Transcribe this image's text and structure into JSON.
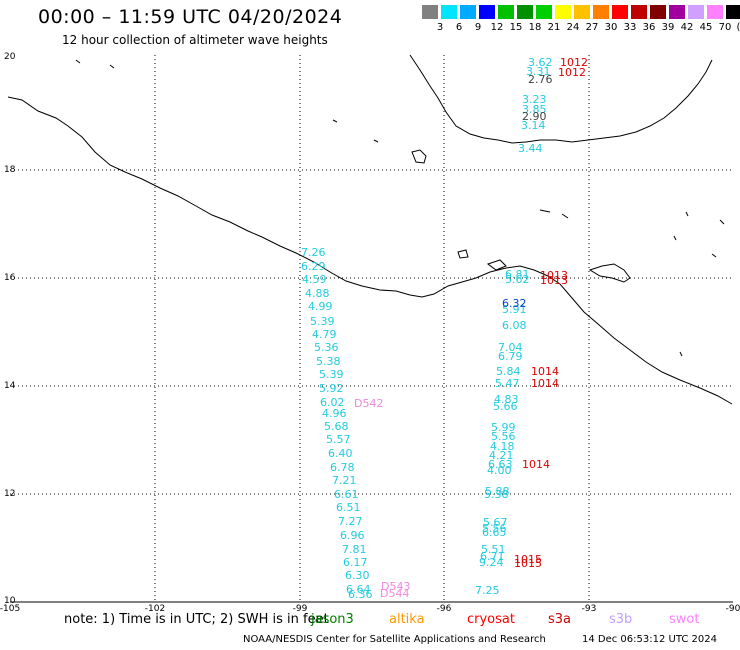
{
  "header": {
    "title": "00:00 – 11:59 UTC 04/20/2024",
    "subtitle": "12 hour collection of altimeter wave heights"
  },
  "scale": {
    "labels": [
      "3",
      "6",
      "9",
      "12",
      "15",
      "18",
      "21",
      "24",
      "27",
      "30",
      "33",
      "36",
      "39",
      "42",
      "45",
      "70",
      "(ft)"
    ],
    "colors": [
      "#808080",
      "#00e5ff",
      "#00aaff",
      "#0000ff",
      "#00c000",
      "#009000",
      "#00d000",
      "#ffff00",
      "#ffc000",
      "#ff8000",
      "#ff0000",
      "#c00000",
      "#800000",
      "#a000a0",
      "#d0a0ff",
      "#ff80ff",
      "#000000"
    ]
  },
  "axes": {
    "lon_labels": [
      "-105",
      "-102",
      "-99",
      "-96",
      "-93",
      "-90"
    ],
    "lat_labels": [
      "20",
      "18",
      "16",
      "14",
      "12",
      "10"
    ]
  },
  "tracks": {
    "jason_west_cyan": [
      "7.26",
      "6.29",
      "4.59",
      "4.88",
      "4.99",
      "5.39",
      "4.79",
      "5.36",
      "5.38",
      "5.39",
      "5.92",
      "6.02",
      "4.96",
      "5.68",
      "5.57",
      "6.40",
      "6.78",
      "7.21",
      "6.61",
      "6.51",
      "7.27",
      "6.96",
      "7.81",
      "6.17",
      "6.30",
      "6.64",
      "6.36"
    ],
    "east_cyan_north": [
      "3.62",
      "3.31",
      "3.23",
      "3.85",
      "3.14",
      "3.44"
    ],
    "east_gray_north": [
      "2.76",
      "2.90"
    ],
    "east_cyan_south": [
      "6.81",
      "5.62",
      "5.91",
      "6.08",
      "7.04",
      "6.79",
      "5.84",
      "5.47",
      "4.83",
      "5.66",
      "5.99",
      "5.56",
      "4.18",
      "4.21",
      "6.63",
      "4.00",
      "5.88",
      "5.38",
      "5.67",
      "5.56",
      "6.65",
      "5.51",
      "6.71",
      "9.24",
      "7.25"
    ],
    "east_blue": [
      "6.32"
    ],
    "red_labels": [
      "1012",
      "1012",
      "1013",
      "1013",
      "1014",
      "1014",
      "1014",
      "1015",
      "1015"
    ],
    "pink_labels": [
      "D542",
      "D543",
      "D544"
    ]
  },
  "legend": {
    "note": "note: 1) Time is in UTC; 2) SWH is in feet",
    "satellites": [
      {
        "name": "jason3",
        "color": "#008000"
      },
      {
        "name": "altika",
        "color": "#ff9900"
      },
      {
        "name": "cryosat",
        "color": "#ff0000"
      },
      {
        "name": "s3a",
        "color": "#cc0000"
      },
      {
        "name": "s3b",
        "color": "#c0a0ff"
      },
      {
        "name": "swot",
        "color": "#ff80ff"
      }
    ],
    "credit": "NOAA/NESDIS Center for Satellite Applications and Research",
    "timestamp": "14 Dec 06:53:12 UTC 2024"
  }
}
